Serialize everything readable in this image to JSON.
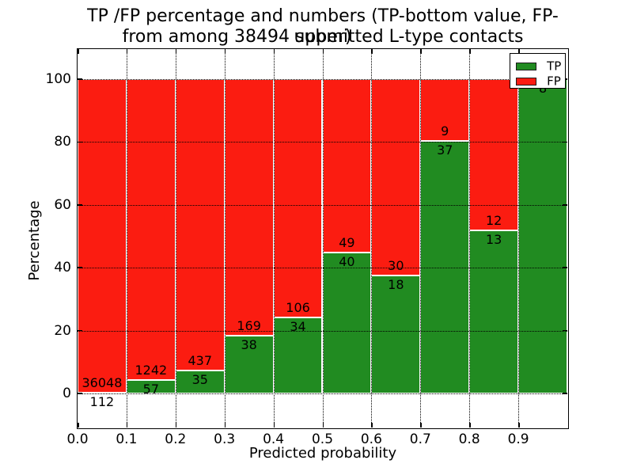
{
  "chart_data": {
    "type": "bar",
    "stacked": true,
    "normalized": "percent",
    "title_lines": [
      "TP /FP percentage and numbers (TP-bottom value, FP-upper)",
      "from among 38494 submitted L-type contacts"
    ],
    "total_submitted_contacts": 38494,
    "xlabel": "Predicted probability",
    "ylabel": "Percentage",
    "xlim": [
      0.0,
      1.0
    ],
    "ylim": [
      -10.8,
      109.6
    ],
    "grid": "dotted",
    "bin_edges": [
      0.0,
      0.1,
      0.2,
      0.3,
      0.4,
      0.5,
      0.6,
      0.7,
      0.8,
      0.9,
      1.0
    ],
    "x_tick_values": [
      0.0,
      0.1,
      0.2,
      0.3,
      0.4,
      0.5,
      0.6,
      0.7,
      0.8,
      0.9
    ],
    "x_tick_labels": [
      "0.0",
      "0.1",
      "0.2",
      "0.3",
      "0.4",
      "0.5",
      "0.6",
      "0.7",
      "0.8",
      "0.9"
    ],
    "y_tick_values": [
      0,
      20,
      40,
      60,
      80,
      100
    ],
    "y_tick_labels": [
      "0",
      "20",
      "40",
      "60",
      "80",
      "100"
    ],
    "series": [
      {
        "name": "TP",
        "counts": [
          112,
          57,
          35,
          38,
          34,
          40,
          18,
          37,
          13,
          8
        ]
      },
      {
        "name": "FP",
        "counts": [
          36048,
          1242,
          437,
          169,
          106,
          49,
          30,
          9,
          12,
          0
        ]
      }
    ],
    "tp_percent": [
      0.31,
      4.39,
      7.42,
      18.36,
      24.29,
      44.94,
      37.5,
      80.43,
      52.0,
      100.0
    ],
    "value_labels": {
      "tp": [
        "112",
        "57",
        "35",
        "38",
        "34",
        "40",
        "18",
        "37",
        "13",
        "8"
      ],
      "fp": [
        "36048",
        "1242",
        "437",
        "169",
        "106",
        "49",
        "30",
        "9",
        "12",
        ""
      ]
    },
    "colors": {
      "tp": "#218b21",
      "fp": "#fb1c11",
      "grid": "#000000",
      "bar_edge": "#ffffff",
      "text": "#000000",
      "background": "#ffffff"
    },
    "legend": {
      "position": "upper right",
      "entries": [
        {
          "name": "TP",
          "color": "#218b21"
        },
        {
          "name": "FP",
          "color": "#fb1c11"
        }
      ]
    }
  }
}
